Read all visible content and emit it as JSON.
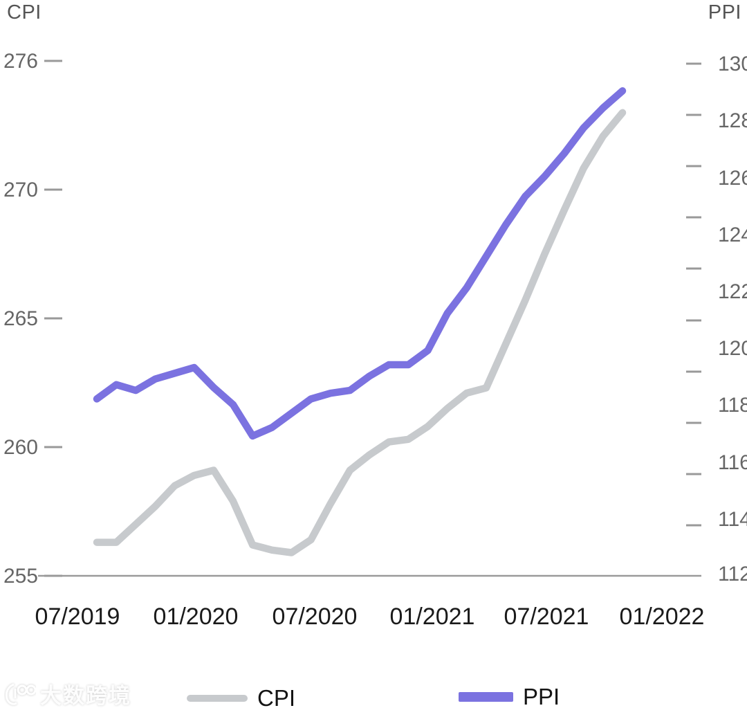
{
  "header": {
    "left_axis_name": "CPI",
    "right_axis_name": "PPI"
  },
  "chart_data": {
    "type": "line",
    "x": [
      "08/2019",
      "09/2019",
      "10/2019",
      "11/2019",
      "12/2019",
      "01/2020",
      "02/2020",
      "03/2020",
      "04/2020",
      "05/2020",
      "06/2020",
      "07/2020",
      "08/2020",
      "09/2020",
      "10/2020",
      "11/2020",
      "12/2020",
      "01/2021",
      "02/2021",
      "03/2021",
      "04/2021",
      "05/2021",
      "06/2021",
      "07/2021",
      "08/2021",
      "09/2021",
      "10/2021",
      "11/2021"
    ],
    "x_tick_labels": [
      "07/2019",
      "01/2020",
      "07/2020",
      "01/2021",
      "07/2021",
      "01/2022"
    ],
    "left_axis": {
      "name": "CPI",
      "tick_labels": [
        "276",
        "270",
        "265",
        "260",
        "255"
      ],
      "range": [
        255,
        276
      ]
    },
    "right_axis": {
      "name": "PPI",
      "tick_labels": [
        "130",
        "128",
        "126",
        "124",
        "122",
        "120",
        "118",
        "116",
        "114",
        "112"
      ],
      "range": [
        112,
        130
      ]
    },
    "series": [
      {
        "name": "CPI",
        "axis": "left",
        "color": "#c7cacd",
        "values": [
          256.3,
          256.3,
          257.0,
          257.7,
          258.5,
          258.9,
          259.1,
          257.9,
          256.2,
          256.0,
          255.9,
          256.4,
          257.8,
          259.1,
          259.7,
          260.2,
          260.3,
          260.8,
          261.5,
          262.1,
          262.3,
          264.0,
          265.7,
          267.5,
          269.2,
          271.0,
          272.5,
          273.6
        ]
      },
      {
        "name": "PPI",
        "axis": "right",
        "color": "#7b72e0",
        "values": [
          118.2,
          118.7,
          118.5,
          118.9,
          119.1,
          119.3,
          118.6,
          118.0,
          116.9,
          117.2,
          117.7,
          118.2,
          118.4,
          118.5,
          119.0,
          119.4,
          119.4,
          119.9,
          121.2,
          122.1,
          123.2,
          124.3,
          125.3,
          126.0,
          126.8,
          127.7,
          128.4,
          129.0
        ]
      }
    ],
    "grid": false,
    "legend_position": "bottom",
    "title": "",
    "xlabel": "",
    "ylabel_left": "CPI",
    "ylabel_right": "PPI"
  },
  "legend": {
    "items": [
      {
        "label": "CPI",
        "color": "#c7cacd"
      },
      {
        "label": "PPI",
        "color": "#7b72e0"
      }
    ]
  },
  "watermark": {
    "icon": "100-glasses-logo",
    "text": "大数跨境"
  }
}
